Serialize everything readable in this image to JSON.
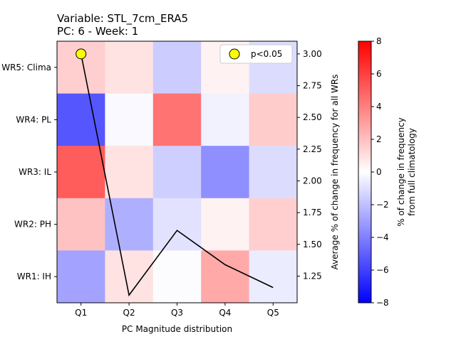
{
  "chart_data": {
    "type": "heatmap",
    "title_line1": "Variable: STL_7cm_ERA5",
    "title_line2": "PC: 6 - Week: 1",
    "xlabel": "PC Magnitude distribution",
    "ylabel_right": "Average % of change in frequency for all WRs",
    "colorbar_label_line1": "% of change in frequency",
    "colorbar_label_line2": "from full climatology",
    "x_categories": [
      "Q1",
      "Q2",
      "Q3",
      "Q4",
      "Q5"
    ],
    "y_categories_top_to_bottom": [
      "WR5: Clima",
      "WR4: PL",
      "WR3: IL",
      "WR2: PH",
      "WR1: IH"
    ],
    "cell_values_top_to_bottom": [
      [
        1.5,
        0.9,
        -1.6,
        0.4,
        -1.1
      ],
      [
        -5.3,
        -0.2,
        4.4,
        -0.4,
        1.6
      ],
      [
        5.1,
        0.9,
        -1.5,
        -3.5,
        -1.1
      ],
      [
        1.9,
        -2.5,
        -0.9,
        0.4,
        1.5
      ],
      [
        -2.9,
        0.9,
        -0.1,
        2.7,
        -0.6
      ]
    ],
    "color_range": [
      -8,
      8
    ],
    "colorbar_ticks": [
      "8",
      "6",
      "4",
      "2",
      "0",
      "−2",
      "−4",
      "−6",
      "−8"
    ],
    "colormap": {
      "negative": "#0000ff",
      "zero": "#ffffff",
      "positive": "#ff0000"
    },
    "line_series": {
      "x": [
        "Q1",
        "Q2",
        "Q3",
        "Q4",
        "Q5"
      ],
      "y": [
        3.0,
        1.1,
        1.61,
        1.34,
        1.16
      ],
      "color": "#000000"
    },
    "significant_points": [
      {
        "x": "Q1",
        "y": 3.0
      }
    ],
    "marker_color": "#ffff00",
    "right_axis_ylim": [
      1.04,
      3.1
    ],
    "right_axis_ticks": [
      "3.00",
      "2.75",
      "2.50",
      "2.25",
      "2.00",
      "1.75",
      "1.50",
      "1.25"
    ],
    "legend": {
      "label": "p<0.05",
      "placement": "top-right"
    }
  }
}
